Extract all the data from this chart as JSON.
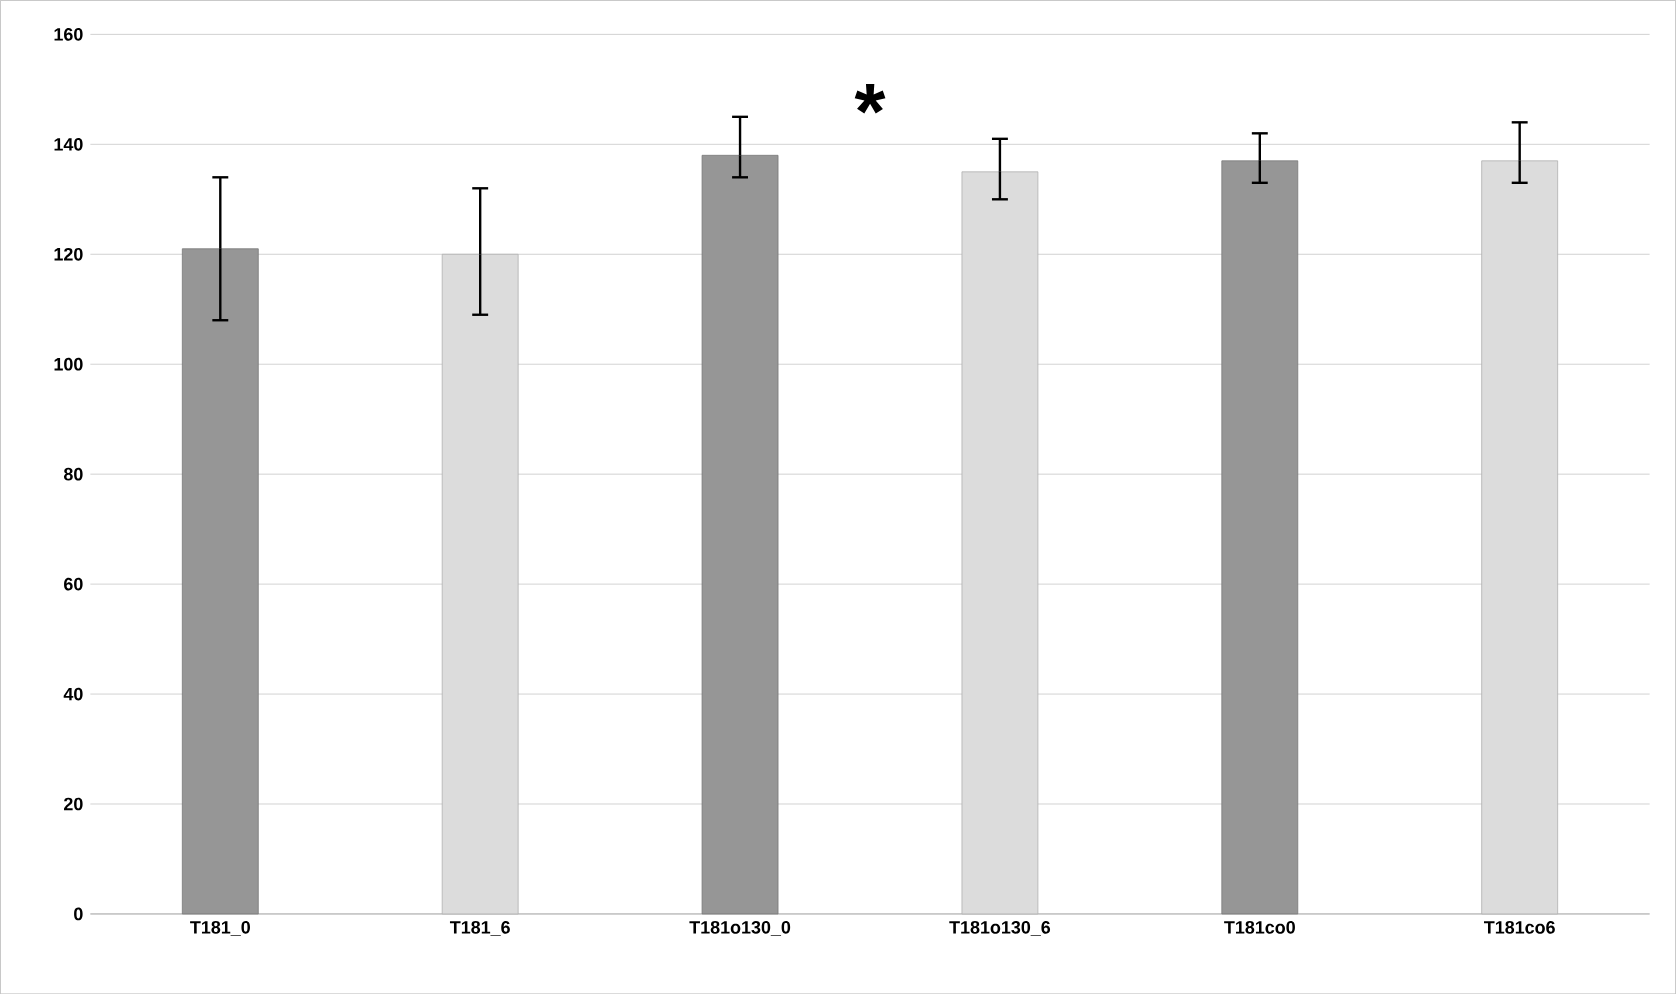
{
  "chart_data": {
    "type": "bar",
    "categories": [
      "T181_0",
      "T181_6",
      "T181o130_0",
      "T181o130_6",
      "T181co0",
      "T181co6"
    ],
    "values": [
      121,
      120,
      138,
      135,
      137,
      137
    ],
    "errors": [
      [
        108,
        134
      ],
      [
        109,
        132
      ],
      [
        134,
        145
      ],
      [
        130,
        141
      ],
      [
        133,
        142
      ],
      [
        133,
        144
      ]
    ],
    "colors": [
      "#969696",
      "#dcdcdc",
      "#969696",
      "#dcdcdc",
      "#969696",
      "#dcdcdc"
    ],
    "ylim": [
      0,
      160
    ],
    "yticks": [
      0,
      20,
      40,
      60,
      80,
      100,
      120,
      140,
      160
    ],
    "grid": "y",
    "annotations": [
      "*"
    ]
  }
}
